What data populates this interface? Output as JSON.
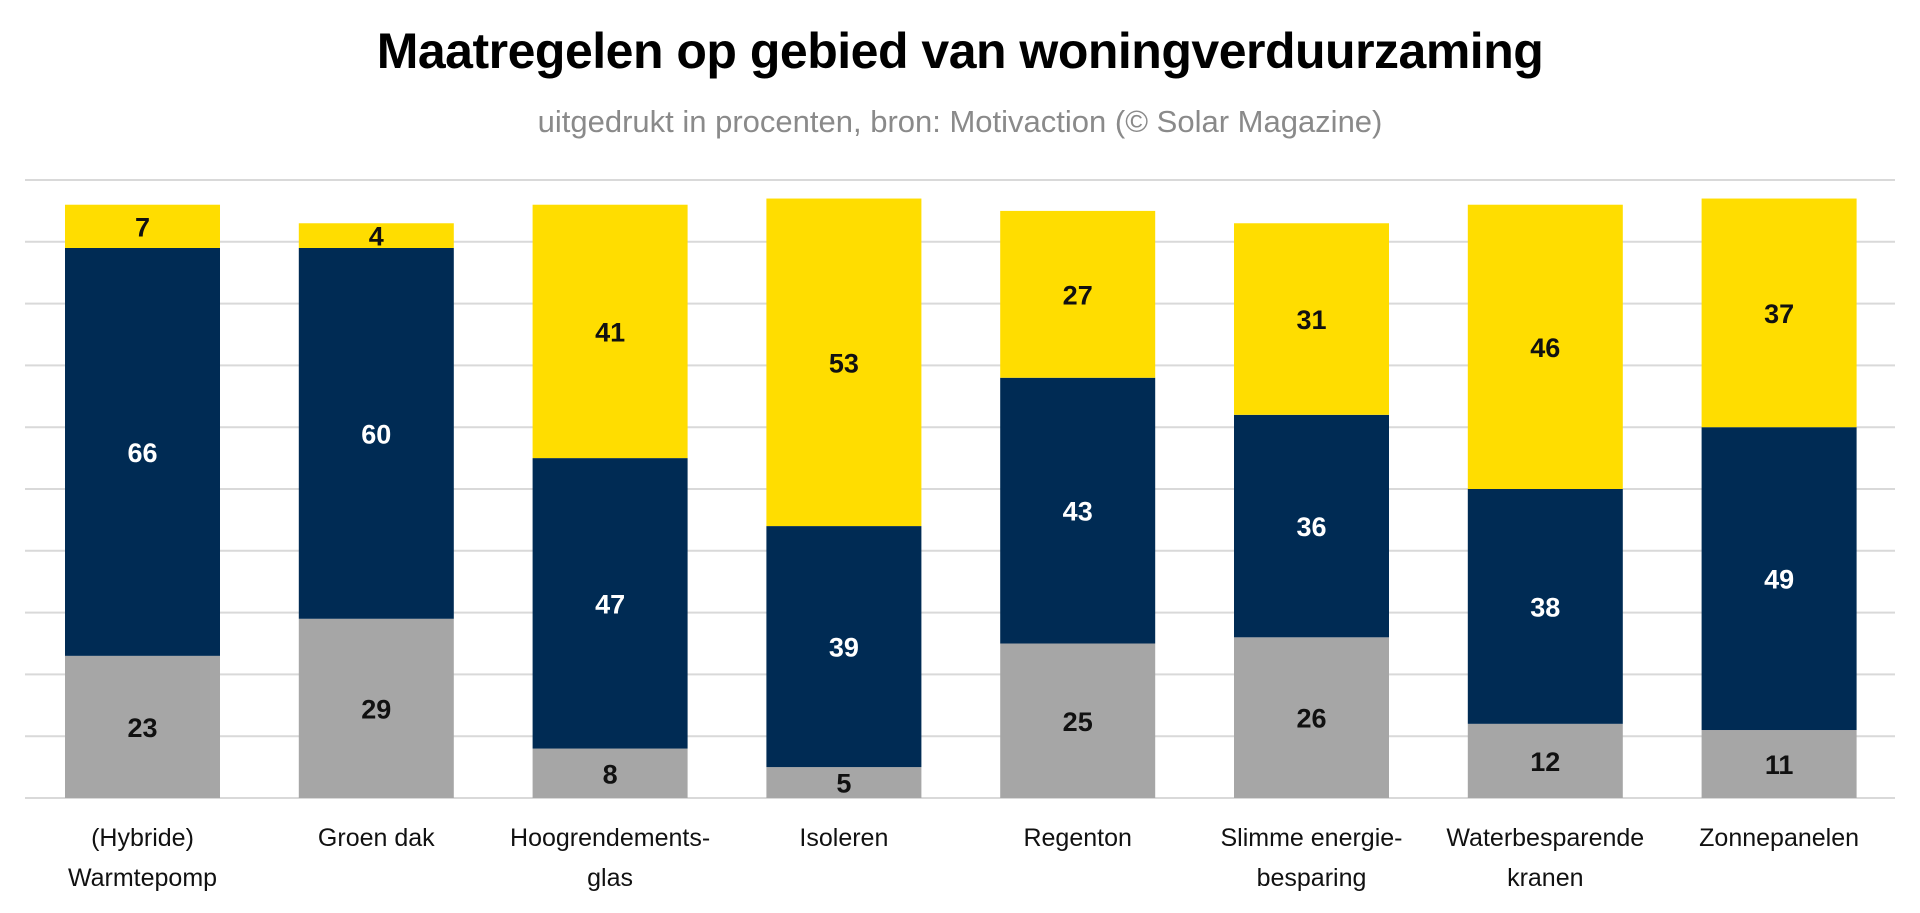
{
  "chart_data": {
    "type": "bar",
    "stacked": true,
    "title": "Maatregelen op gebied van woningverduurzaming",
    "subtitle": "uitgedrukt in procenten, bron: Motivaction (© Solar Magazine)",
    "xlabel": "",
    "ylabel": "",
    "ylim": [
      0,
      100
    ],
    "grid": true,
    "gridline_step": 10,
    "legend": "none",
    "categories": [
      [
        "(Hybride)",
        "Warmtepomp"
      ],
      [
        "Groen dak"
      ],
      [
        "Hoogrendements-",
        "glas"
      ],
      [
        "Isoleren"
      ],
      [
        "Regenton"
      ],
      [
        "Slimme energie-",
        "besparing"
      ],
      [
        "Waterbesparende",
        "kranen"
      ],
      [
        "Zonnepanelen"
      ]
    ],
    "series": [
      {
        "name": "grey",
        "color": "#a6a6a6",
        "label_color": "#111111",
        "values": [
          23,
          29,
          8,
          5,
          25,
          26,
          12,
          11
        ]
      },
      {
        "name": "navy",
        "color": "#002b54",
        "label_color": "#ffffff",
        "values": [
          66,
          60,
          47,
          39,
          43,
          36,
          38,
          49
        ]
      },
      {
        "name": "yellow",
        "color": "#ffdd00",
        "label_color": "#111111",
        "values": [
          7,
          4,
          41,
          53,
          27,
          31,
          46,
          37
        ]
      }
    ],
    "gridline_color": "#d9d9d9"
  }
}
